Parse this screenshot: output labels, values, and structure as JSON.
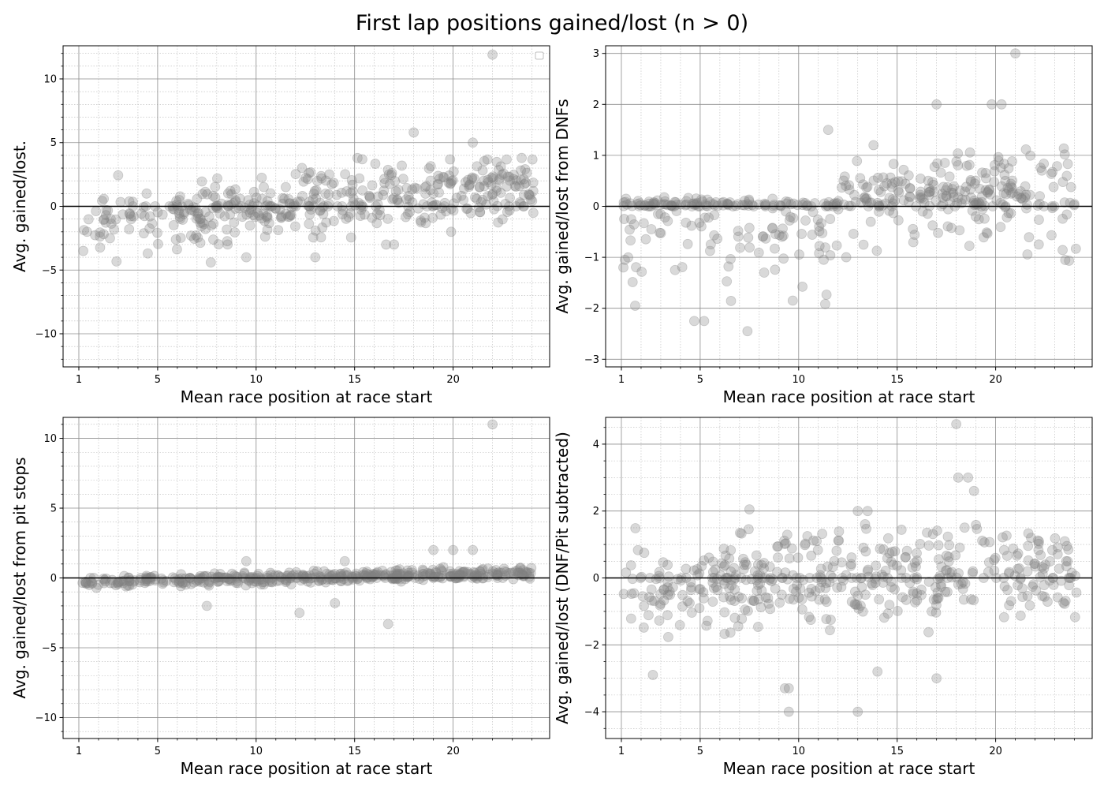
{
  "figure": {
    "title": "First lap positions gained/lost (n > 0)"
  },
  "chart_data": [
    {
      "type": "scatter",
      "xlabel": "Mean race position at race start",
      "ylabel": "Avg. gained/lost.",
      "xlim": [
        0.2,
        24.9
      ],
      "ylim": [
        -12.6,
        12.6
      ],
      "xticks": [
        1,
        5,
        10,
        15,
        20
      ],
      "yticks": [
        -10,
        -5,
        0,
        5,
        10
      ],
      "minor_x_step": 1,
      "minor_y_step": 1,
      "grid": true,
      "legend": "top-right (empty)",
      "zero_line": true,
      "point_color": "#808080",
      "seed": 11,
      "spread": 1.35,
      "slope": 0.13,
      "skew": "none",
      "outliers": [
        [
          22.0,
          11.9
        ],
        [
          7.7,
          -4.4
        ],
        [
          18.0,
          5.8
        ],
        [
          21.0,
          5.0
        ],
        [
          13.0,
          -4.0
        ],
        [
          9.5,
          -4.0
        ],
        [
          19.9,
          -2.0
        ],
        [
          16.6,
          -3.0
        ],
        [
          17.0,
          -3.0
        ],
        [
          4.5,
          -3.7
        ]
      ]
    },
    {
      "type": "scatter",
      "xlabel": "Mean race position at race start",
      "ylabel": "Avg. gained/lost from DNFs",
      "xlim": [
        0.2,
        24.9
      ],
      "ylim": [
        -3.15,
        3.15
      ],
      "xticks": [
        1,
        5,
        10,
        15,
        20
      ],
      "yticks": [
        -3,
        -2,
        -1,
        0,
        1,
        2,
        3
      ],
      "minor_x_step": 1,
      "minor_y_step": 0,
      "grid": true,
      "legend": "",
      "zero_line": true,
      "point_color": "#808080",
      "seed": 23,
      "spread": 0.45,
      "slope": 0.035,
      "skew": "negative-left",
      "outliers": [
        [
          21.0,
          3.0
        ],
        [
          17.0,
          2.0
        ],
        [
          19.8,
          2.0
        ],
        [
          20.3,
          2.0
        ],
        [
          1.7,
          -1.95
        ],
        [
          1.1,
          -1.2
        ],
        [
          4.7,
          -2.25
        ],
        [
          5.2,
          -2.25
        ],
        [
          7.4,
          -2.45
        ],
        [
          9.7,
          -1.85
        ],
        [
          11.5,
          1.5
        ],
        [
          13.8,
          1.2
        ]
      ]
    },
    {
      "type": "scatter",
      "xlabel": "Mean race position at race start",
      "ylabel": "Avg. gained/lost from pit stops",
      "xlim": [
        0.2,
        24.9
      ],
      "ylim": [
        -11.5,
        11.5
      ],
      "xticks": [
        1,
        5,
        10,
        15,
        20
      ],
      "yticks": [
        -10,
        -5,
        0,
        5,
        10
      ],
      "minor_x_step": 1,
      "minor_y_step": 1,
      "grid": true,
      "legend": "",
      "zero_line": true,
      "point_color": "#808080",
      "seed": 37,
      "spread": 0.22,
      "slope": 0.03,
      "skew": "none",
      "outliers": [
        [
          22.0,
          11.0
        ],
        [
          16.7,
          -3.3
        ],
        [
          19.0,
          2.0
        ],
        [
          20.0,
          2.0
        ],
        [
          21.0,
          2.0
        ],
        [
          12.2,
          -2.5
        ],
        [
          7.5,
          -2.0
        ],
        [
          14.0,
          -1.8
        ],
        [
          9.5,
          1.2
        ],
        [
          14.5,
          1.2
        ]
      ]
    },
    {
      "type": "scatter",
      "xlabel": "Mean race position at race start",
      "ylabel": "Avg. gained/lost (DNF/Pit subtracted)",
      "xlim": [
        0.2,
        24.9
      ],
      "ylim": [
        -4.8,
        4.8
      ],
      "xticks": [
        1,
        5,
        10,
        15,
        20
      ],
      "yticks": [
        -4,
        -2,
        0,
        2,
        4
      ],
      "minor_x_step": 1,
      "minor_y_step": 0.5,
      "grid": true,
      "legend": "",
      "zero_line": true,
      "point_color": "#808080",
      "seed": 53,
      "spread": 0.75,
      "slope": 0.02,
      "skew": "none",
      "outliers": [
        [
          18.0,
          4.6
        ],
        [
          9.5,
          -4.0
        ],
        [
          13.0,
          -4.0
        ],
        [
          2.6,
          -2.9
        ],
        [
          9.3,
          -3.3
        ],
        [
          9.5,
          -3.3
        ],
        [
          17.0,
          -3.0
        ],
        [
          14.0,
          -2.8
        ],
        [
          18.1,
          3.0
        ],
        [
          18.6,
          3.0
        ],
        [
          18.9,
          2.6
        ],
        [
          7.5,
          2.05
        ],
        [
          13.0,
          2.0
        ],
        [
          13.5,
          2.0
        ]
      ]
    }
  ]
}
